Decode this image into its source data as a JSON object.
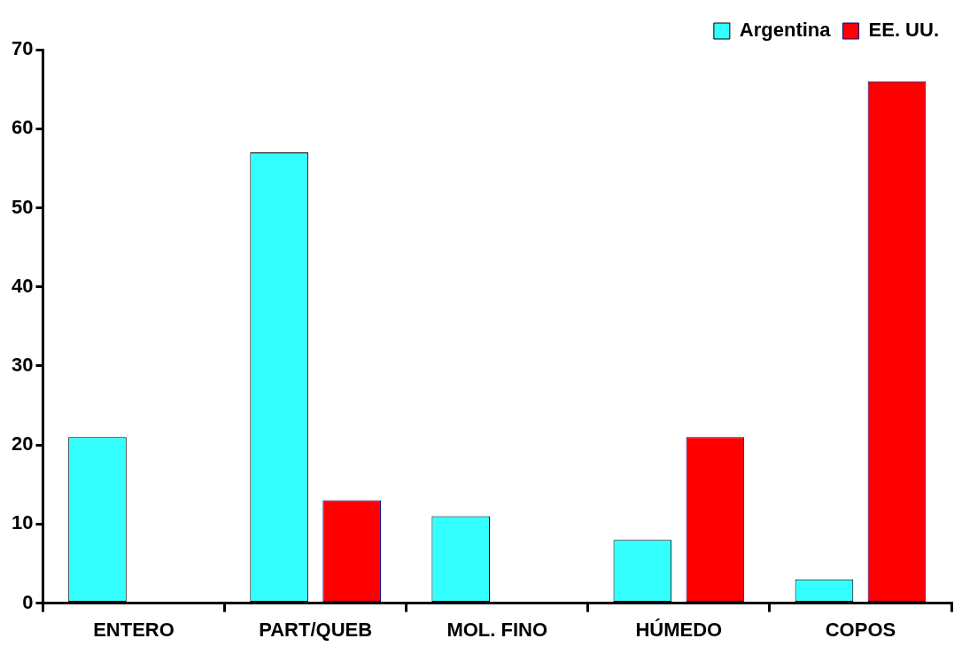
{
  "chart_data": {
    "type": "bar",
    "categories": [
      "ENTERO",
      "PART/QUEB",
      "MOL. FINO",
      "HÚMEDO",
      "COPOS"
    ],
    "series": [
      {
        "name": "Argentina",
        "color": "#33ffff",
        "values": [
          21,
          57,
          11,
          8,
          3
        ]
      },
      {
        "name": "EE. UU.",
        "color": "#ff0000",
        "values": [
          null,
          13,
          null,
          21,
          66
        ]
      }
    ],
    "ylim": [
      0,
      70
    ],
    "yticks": [
      0,
      10,
      20,
      30,
      40,
      50,
      60,
      70
    ],
    "grid": false,
    "legend": "top right"
  }
}
